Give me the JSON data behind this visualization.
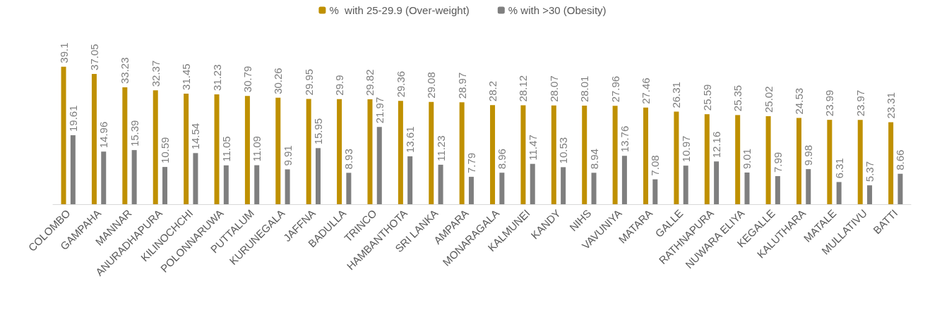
{
  "chart_data": {
    "type": "bar",
    "categories": [
      "COLOMBO",
      "GAMPAHA",
      "MANNAR",
      "ANURADHAPURA",
      "KILINOCHCHI",
      "POLONNARUWA",
      "PUTTALUM",
      "KURUNEGALA",
      "JAFFNA",
      "BADULLA",
      "TRINCO",
      "HAMBANTHOTA",
      "SRI LANKA",
      "AMPARA",
      "MONARAGALA",
      "KALMUNEI",
      "KANDY",
      "NIHS",
      "VAVUNIYA",
      "MATARA",
      "GALLE",
      "RATHNAPURA",
      "NUWARA ELIYA",
      "KEGALLE",
      "KALUTHARA",
      "MATALE",
      "MULLATIVU",
      "BATTI"
    ],
    "series": [
      {
        "name": "%  with 25-29.9 (Over-weight)",
        "color": "#bf9000",
        "values": [
          39.1,
          37.05,
          33.23,
          32.37,
          31.45,
          31.23,
          30.79,
          30.26,
          29.95,
          29.9,
          29.82,
          29.36,
          29.08,
          28.97,
          28.2,
          28.12,
          28.07,
          28.01,
          27.96,
          27.46,
          26.31,
          25.59,
          25.35,
          25.02,
          24.53,
          23.99,
          23.97,
          23.31
        ]
      },
      {
        "name": "% with >30 (Obesity)",
        "color": "#7f7f7f",
        "values": [
          19.61,
          14.96,
          15.39,
          10.59,
          14.54,
          11.05,
          11.09,
          9.91,
          15.95,
          8.93,
          21.97,
          13.61,
          11.23,
          7.79,
          8.96,
          11.47,
          10.53,
          8.94,
          13.76,
          7.08,
          10.97,
          12.16,
          9.01,
          7.99,
          9.98,
          6.31,
          5.37,
          8.66
        ]
      }
    ],
    "data_labels": true,
    "legend": "top",
    "grid": false,
    "tick_labels": "x"
  }
}
